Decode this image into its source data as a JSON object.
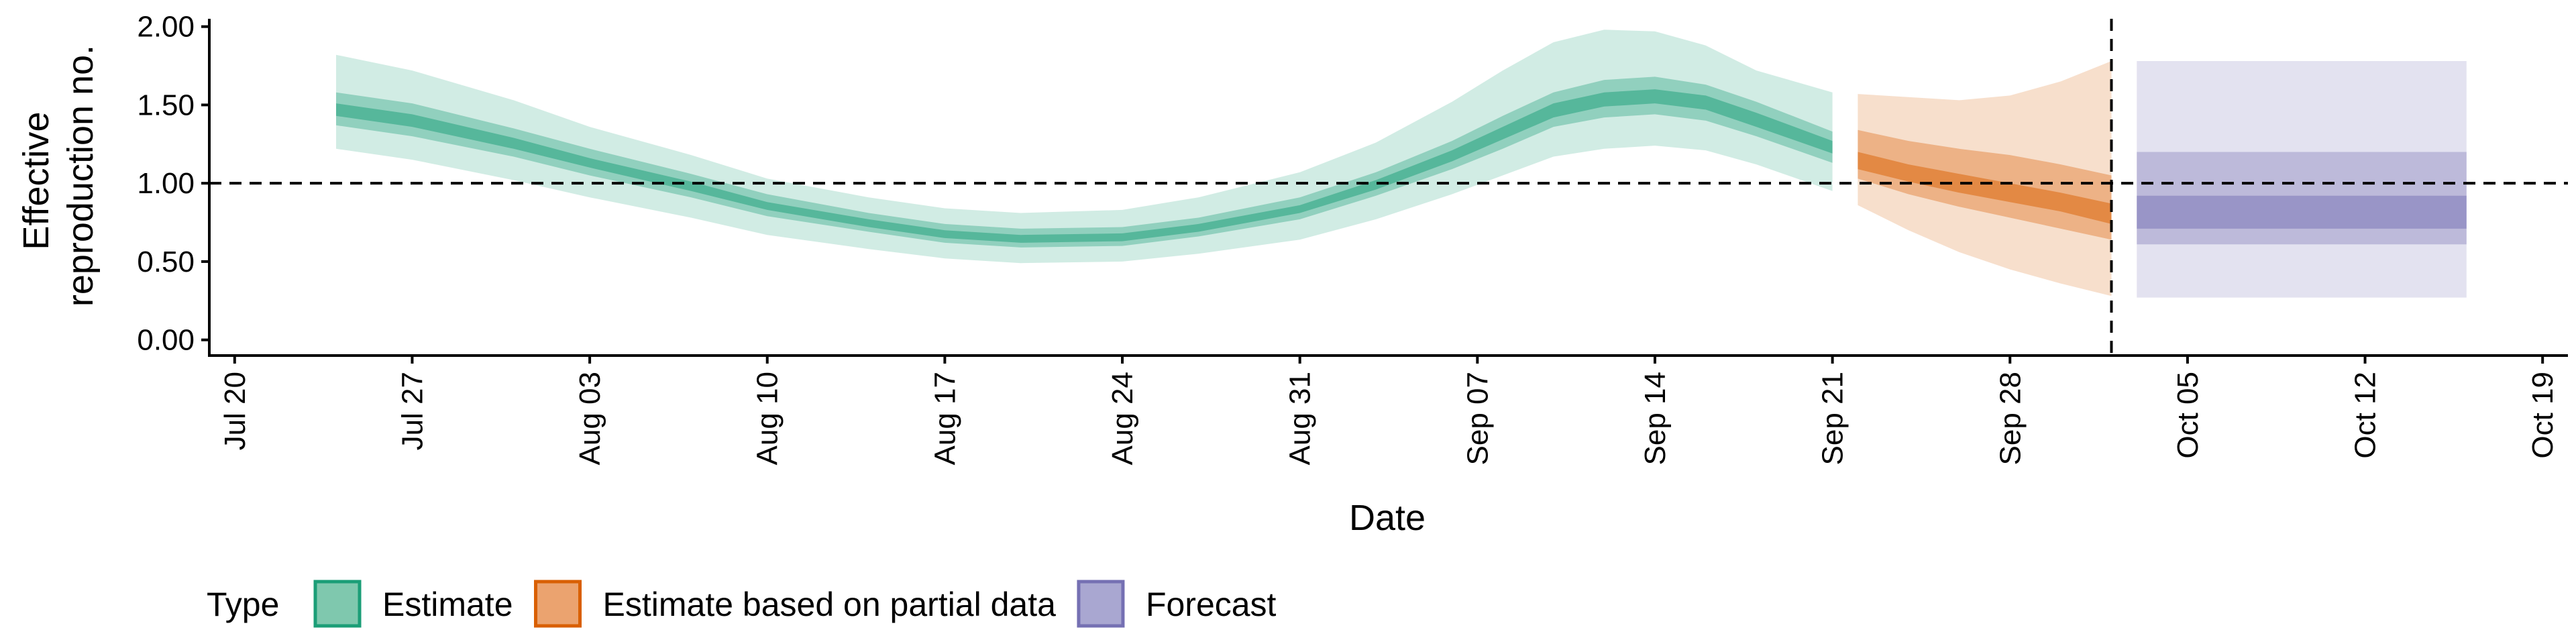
{
  "chart_data": {
    "type": "area",
    "title": "",
    "xlabel": "Date",
    "ylabel_lines": [
      "Effective",
      "reproduction no."
    ],
    "x_ticks": [
      "Jul 20",
      "Jul 27",
      "Aug 03",
      "Aug 10",
      "Aug 17",
      "Aug 24",
      "Aug 31",
      "Sep 07",
      "Sep 14",
      "Sep 21",
      "Sep 28",
      "Oct 05",
      "Oct 12",
      "Oct 19"
    ],
    "xlim": [
      "2020-07-19",
      "2020-10-20"
    ],
    "y_ticks": [
      "0.00",
      "0.50",
      "1.00",
      "1.50",
      "2.00"
    ],
    "ylim": [
      -0.1,
      2.05
    ],
    "reference_hline": 1.0,
    "reference_vline": "2020-10-02",
    "grid": false,
    "legend": {
      "title": "Type",
      "position": "bottom",
      "items": [
        {
          "label": "Estimate",
          "fill": "#7fc8ae",
          "stroke": "#1b9e77"
        },
        {
          "label": "Estimate based on partial data",
          "fill": "#eba36f",
          "stroke": "#d95f02"
        },
        {
          "label": "Forecast",
          "fill": "#a9a7d1",
          "stroke": "#7570b3"
        }
      ]
    },
    "series": [
      {
        "name": "Estimate",
        "colors": {
          "outer": "#1b9e77",
          "inner": "#1b9e77",
          "core": "#1b9e77"
        },
        "dates": [
          "2020-07-24",
          "2020-07-27",
          "2020-07-31",
          "2020-08-03",
          "2020-08-07",
          "2020-08-10",
          "2020-08-14",
          "2020-08-17",
          "2020-08-20",
          "2020-08-24",
          "2020-08-27",
          "2020-08-31",
          "2020-09-03",
          "2020-09-06",
          "2020-09-08",
          "2020-09-10",
          "2020-09-12",
          "2020-09-14",
          "2020-09-16",
          "2020-09-18",
          "2020-09-21"
        ],
        "lo90": [
          1.22,
          1.15,
          1.02,
          0.91,
          0.78,
          0.67,
          0.58,
          0.52,
          0.49,
          0.5,
          0.55,
          0.64,
          0.77,
          0.93,
          1.05,
          1.17,
          1.22,
          1.24,
          1.21,
          1.12,
          0.95
        ],
        "lo50": [
          1.37,
          1.3,
          1.17,
          1.05,
          0.91,
          0.79,
          0.69,
          0.62,
          0.59,
          0.6,
          0.66,
          0.77,
          0.92,
          1.09,
          1.22,
          1.36,
          1.42,
          1.44,
          1.4,
          1.3,
          1.13
        ],
        "lo20": [
          1.43,
          1.36,
          1.22,
          1.1,
          0.95,
          0.83,
          0.72,
          0.65,
          0.62,
          0.63,
          0.69,
          0.81,
          0.96,
          1.14,
          1.28,
          1.42,
          1.49,
          1.51,
          1.47,
          1.36,
          1.19
        ],
        "hi20": [
          1.51,
          1.44,
          1.29,
          1.16,
          1.01,
          0.88,
          0.77,
          0.7,
          0.67,
          0.68,
          0.74,
          0.86,
          1.02,
          1.21,
          1.36,
          1.51,
          1.58,
          1.6,
          1.56,
          1.45,
          1.27
        ],
        "hi50": [
          1.58,
          1.51,
          1.35,
          1.22,
          1.06,
          0.93,
          0.81,
          0.74,
          0.71,
          0.72,
          0.78,
          0.91,
          1.07,
          1.27,
          1.43,
          1.58,
          1.66,
          1.68,
          1.63,
          1.52,
          1.33
        ],
        "hi90": [
          1.82,
          1.72,
          1.53,
          1.36,
          1.18,
          1.03,
          0.91,
          0.84,
          0.81,
          0.83,
          0.91,
          1.07,
          1.26,
          1.52,
          1.72,
          1.9,
          1.98,
          1.97,
          1.88,
          1.72,
          1.58
        ]
      },
      {
        "name": "Estimate based on partial data",
        "colors": {
          "outer": "#d95f02",
          "inner": "#d95f02",
          "core": "#d95f02"
        },
        "dates": [
          "2020-09-22",
          "2020-09-24",
          "2020-09-26",
          "2020-09-28",
          "2020-09-30",
          "2020-10-02"
        ],
        "lo90": [
          0.86,
          0.7,
          0.56,
          0.45,
          0.36,
          0.28
        ],
        "lo50": [
          1.03,
          0.93,
          0.85,
          0.78,
          0.71,
          0.64
        ],
        "lo20": [
          1.09,
          1.01,
          0.94,
          0.88,
          0.82,
          0.74
        ],
        "hi20": [
          1.2,
          1.12,
          1.06,
          1.0,
          0.94,
          0.87
        ],
        "hi50": [
          1.34,
          1.27,
          1.22,
          1.18,
          1.12,
          1.05
        ],
        "hi90": [
          1.57,
          1.55,
          1.53,
          1.56,
          1.65,
          1.78
        ]
      },
      {
        "name": "Forecast",
        "colors": {
          "outer": "#7570b3",
          "inner": "#7570b3",
          "core": "#7570b3"
        },
        "dates": [
          "2020-10-03",
          "2020-10-16"
        ],
        "lo90": [
          0.27,
          0.27
        ],
        "lo50": [
          0.61,
          0.61
        ],
        "lo20": [
          0.71,
          0.71
        ],
        "hi20": [
          0.92,
          0.92
        ],
        "hi50": [
          1.2,
          1.2
        ],
        "hi90": [
          1.78,
          1.78
        ]
      }
    ]
  }
}
